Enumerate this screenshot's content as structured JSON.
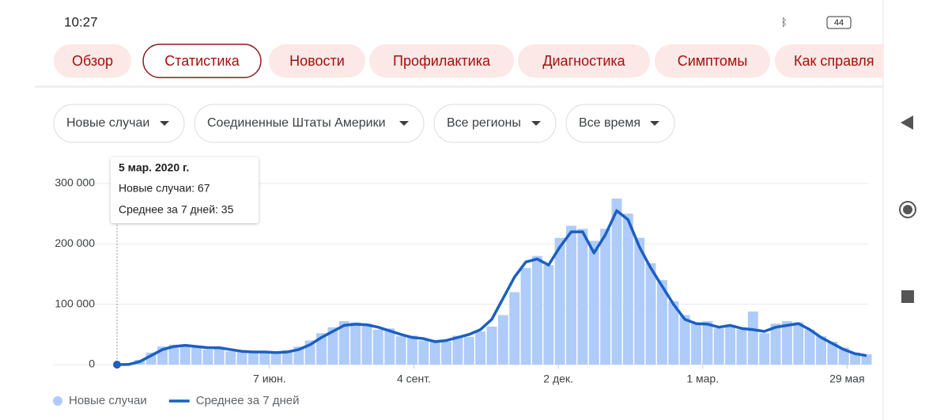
{
  "status_bar": {
    "time": "10:27",
    "battery": "44"
  },
  "tabs": [
    "Обзор",
    "Статистика",
    "Новости",
    "Профилактика",
    "Диагностика",
    "Симптомы",
    "Как справля"
  ],
  "filters": [
    "Новые случаи",
    "Соединенные Штаты Америки",
    "Все регионы",
    "Все время"
  ],
  "tooltip": {
    "title": "5 мар. 2020 г.",
    "rows": [
      "Новые случаи: 67",
      "Среднее за 7 дней: 35"
    ]
  },
  "chart_data": {
    "type": "bar",
    "x": [
      0,
      7,
      14,
      21,
      28,
      35,
      42,
      49,
      56,
      63,
      70,
      77,
      84,
      91,
      98,
      105,
      112,
      119,
      126,
      133,
      140,
      147,
      154,
      161,
      168,
      175,
      182,
      189,
      196,
      203,
      210,
      217,
      224,
      231,
      238,
      245,
      252,
      259,
      266,
      273,
      280,
      287,
      294,
      301,
      308,
      315,
      322,
      329,
      336,
      343,
      350,
      357,
      364,
      371,
      378,
      385,
      392,
      399,
      406,
      413,
      420,
      427,
      434,
      441,
      448,
      455,
      462
    ],
    "xlim": [
      0,
      463
    ],
    "xticks": [
      {
        "value": 94,
        "label": "7 июн."
      },
      {
        "value": 183,
        "label": "4 сент."
      },
      {
        "value": 272,
        "label": "2 дек."
      },
      {
        "value": 361,
        "label": "1 мар."
      },
      {
        "value": 450,
        "label": "29 мая"
      }
    ],
    "ylim": [
      0,
      300000
    ],
    "yticks": [
      0,
      {
        "value": 100000,
        "label": "100 000"
      },
      {
        "value": 200000,
        "label": "200 000"
      },
      {
        "value": 300000,
        "label": "300 000"
      }
    ],
    "grid": true,
    "series": [
      {
        "name": "Новые случаи",
        "type": "bar",
        "color": "#aecbfa",
        "values": [
          67,
          600,
          8000,
          20000,
          30000,
          33000,
          30000,
          31000,
          25000,
          29000,
          22000,
          24000,
          19000,
          23000,
          22000,
          24000,
          30000,
          40000,
          52000,
          62000,
          72000,
          70000,
          68000,
          58000,
          60000,
          47000,
          48000,
          40000,
          41000,
          38000,
          48000,
          46000,
          55000,
          63000,
          82000,
          120000,
          160000,
          180000,
          165000,
          210000,
          230000,
          225000,
          205000,
          225000,
          275000,
          250000,
          210000,
          168000,
          140000,
          105000,
          82000,
          70000,
          72000,
          60000,
          66000,
          58000,
          88000,
          52000,
          68000,
          72000,
          70000,
          58000,
          47000,
          38000,
          28000,
          20000,
          17000
        ]
      },
      {
        "name": "Среднее за 7 дней",
        "type": "line",
        "color": "#1b5fc1",
        "values": [
          35,
          300,
          5000,
          15000,
          25000,
          30000,
          32000,
          30000,
          28000,
          28000,
          25000,
          22000,
          21000,
          21000,
          20000,
          21000,
          25000,
          33000,
          45000,
          55000,
          65000,
          67000,
          66000,
          62000,
          56000,
          50000,
          45000,
          43000,
          38000,
          40000,
          45000,
          50000,
          58000,
          75000,
          110000,
          145000,
          170000,
          175000,
          165000,
          195000,
          220000,
          220000,
          185000,
          215000,
          255000,
          240000,
          195000,
          160000,
          130000,
          100000,
          75000,
          68000,
          67000,
          62000,
          65000,
          60000,
          58000,
          55000,
          62000,
          65000,
          68000,
          58000,
          45000,
          35000,
          25000,
          18000,
          15000
        ]
      }
    ],
    "legend": "bottom-left"
  }
}
